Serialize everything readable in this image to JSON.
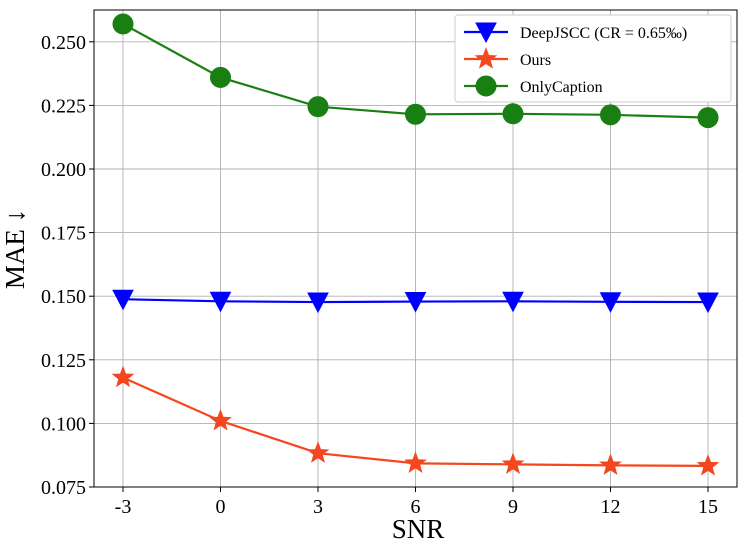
{
  "chart_data": {
    "type": "line",
    "title": "",
    "xlabel": "SNR",
    "ylabel": "MAE ↓",
    "categories": [
      "-3",
      "0",
      "3",
      "6",
      "9",
      "12",
      "15"
    ],
    "ylim": [
      0.075,
      0.2625
    ],
    "yticks": [
      "0.075",
      "0.100",
      "0.125",
      "0.150",
      "0.175",
      "0.200",
      "0.225",
      "0.250"
    ],
    "ytick_values": [
      0.075,
      0.1,
      0.125,
      0.15,
      0.175,
      0.2,
      0.225,
      0.25
    ],
    "grid": true,
    "legend_position": "top-right",
    "series": [
      {
        "name": "DeepJSCC (CR = 0.65‰)",
        "color": "#0000ff",
        "marker": "triangle-down",
        "values": [
          0.1488,
          0.148,
          0.1477,
          0.1479,
          0.148,
          0.1478,
          0.1477
        ]
      },
      {
        "name": "Ours",
        "color": "#f4471f",
        "marker": "star",
        "values": [
          0.118,
          0.101,
          0.0883,
          0.0843,
          0.0839,
          0.0835,
          0.0833
        ]
      },
      {
        "name": "OnlyCaption",
        "color": "#1a7f12",
        "marker": "circle",
        "values": [
          0.257,
          0.236,
          0.2245,
          0.2215,
          0.2217,
          0.2213,
          0.2202
        ]
      }
    ]
  }
}
